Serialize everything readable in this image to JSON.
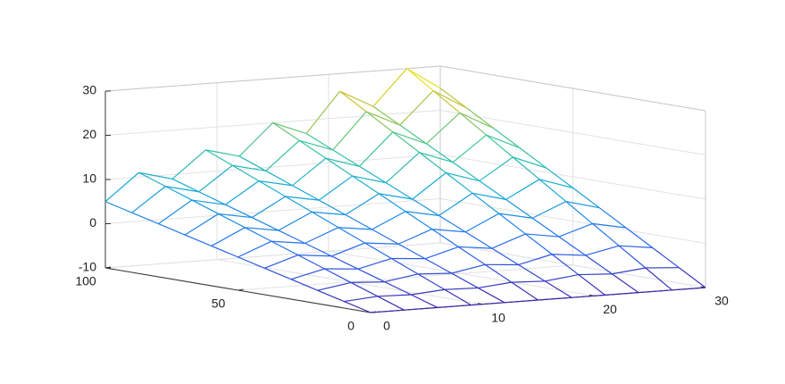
{
  "chart_data": {
    "type": "mesh",
    "x": [
      0,
      3,
      6,
      9,
      12,
      15,
      18,
      21,
      24,
      27,
      30
    ],
    "y": [
      0,
      10,
      20,
      30,
      40,
      50,
      60,
      70,
      80,
      90,
      100
    ],
    "z": [
      [
        -10,
        -10,
        -10,
        -10,
        -10,
        -10,
        -10,
        -10,
        -10,
        -10,
        -10
      ],
      [
        -8.5,
        -7.9,
        -8.1,
        -7.5,
        -7.7,
        -7,
        -7.3,
        -6.4,
        -6.8,
        -6,
        -6.5
      ],
      [
        -7,
        -5.8,
        -6.2,
        -5,
        -5.4,
        -4,
        -4.6,
        -2.8,
        -3.6,
        -2,
        -3
      ],
      [
        -5.5,
        -3.7,
        -4.3,
        -2.5,
        -3.1,
        -1,
        -1.9,
        0.8,
        -0.4,
        2,
        0.5
      ],
      [
        -4,
        -1.6,
        -2.4,
        0,
        -0.8,
        2,
        0.8,
        4.4,
        2.8,
        6,
        4
      ],
      [
        -2.5,
        0.5,
        -0.5,
        2.5,
        1.5,
        5,
        3.5,
        8,
        6,
        10,
        7.5
      ],
      [
        -1,
        2.6,
        1.4,
        5,
        3.8,
        8,
        6.2,
        11.6,
        9.2,
        14,
        11
      ],
      [
        0.5,
        4.7,
        3.3,
        7.5,
        6.1,
        11,
        8.9,
        15.2,
        12.4,
        18,
        14.5
      ],
      [
        2,
        6.8,
        5.2,
        10,
        8.4,
        14,
        11.6,
        18.8,
        15.6,
        22,
        18
      ],
      [
        3.5,
        8.9,
        7.1,
        12.5,
        10.7,
        17,
        14.3,
        22.4,
        18.8,
        26,
        21.5
      ],
      [
        5,
        11,
        9,
        15,
        13,
        20,
        17,
        26,
        22,
        30,
        25
      ]
    ],
    "xlim": [
      0,
      30
    ],
    "ylim": [
      0,
      100
    ],
    "zlim": [
      -10,
      30
    ],
    "xticks": [
      0,
      10,
      20,
      30
    ],
    "yticks": [
      0,
      50,
      100
    ],
    "zticks": [
      -10,
      0,
      10,
      20,
      30
    ],
    "grid": true,
    "colormap": "parula"
  }
}
